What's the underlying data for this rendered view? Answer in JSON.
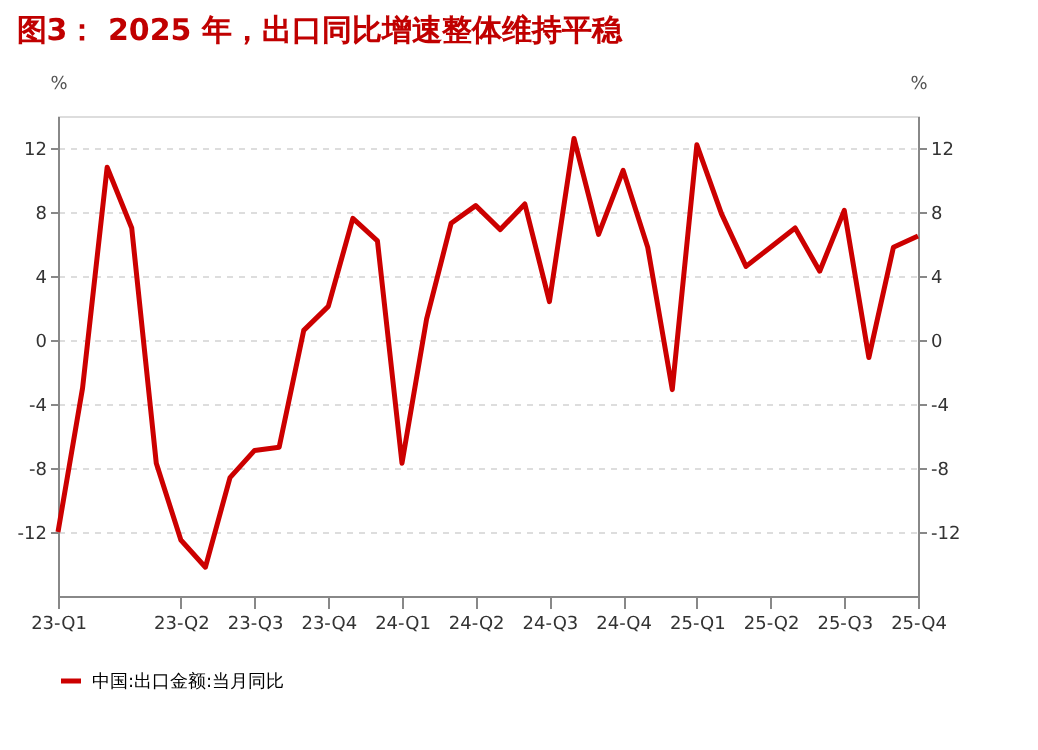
{
  "chart_data": {
    "type": "line",
    "title": "图3：  2025 年，出口同比增速整体维持平稳",
    "categories": [
      "23-Q1",
      null,
      null,
      null,
      null,
      "23-Q2",
      null,
      null,
      "23-Q3",
      null,
      null,
      "23-Q4",
      null,
      null,
      "24-Q1",
      null,
      null,
      "24-Q2",
      null,
      null,
      "24-Q3",
      null,
      null,
      "24-Q4",
      null,
      null,
      "25-Q1",
      null,
      null,
      "25-Q2",
      null,
      null,
      "25-Q3",
      null,
      null,
      "25-Q4"
    ],
    "series": [
      {
        "name": "中国:出口金额:当月同比",
        "color": "#cc0000",
        "values": [
          -12,
          -3,
          10.8,
          7,
          -7.7,
          -12.5,
          -14.2,
          -8.6,
          -6.9,
          -6.7,
          0.6,
          2.1,
          7.6,
          6.2,
          -7.7,
          1.3,
          7.3,
          8.4,
          6.9,
          8.5,
          2.4,
          12.6,
          6.6,
          10.6,
          5.8,
          -3.1,
          12.2,
          7.9,
          4.6,
          5.8,
          7.0,
          4.3,
          8.1,
          -1.1,
          5.8,
          6.5
        ]
      }
    ],
    "ylim": [
      -16,
      14
    ],
    "yticks": [
      -12,
      -8,
      -4,
      0,
      4,
      8,
      12
    ],
    "y2lim": [
      -16,
      14
    ],
    "y2ticks": [
      -12,
      -8,
      -4,
      0,
      4,
      8,
      12
    ],
    "ylabel": "%",
    "y2label": "%",
    "grid": "y",
    "legend": "bottom",
    "marker": "none",
    "line_style": "solid"
  }
}
